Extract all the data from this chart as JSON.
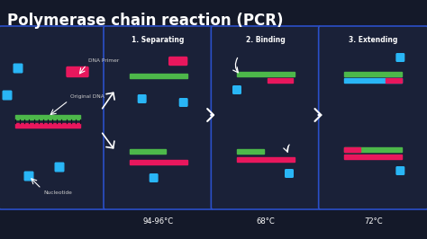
{
  "title": "Polymerase chain reaction (PCR)",
  "bg_color": "#141929",
  "panel_bg": "#1a2138",
  "panel_border": "#2a4fc8",
  "text_color": "#ffffff",
  "title_fontsize": 12,
  "step_labels": [
    "1. Separating",
    "2. Binding",
    "3. Extending"
  ],
  "step_temps": [
    "94-96°C",
    "68°C",
    "72°C"
  ],
  "green_color": "#4db84a",
  "pink_color": "#e8175d",
  "red_color": "#e8175d",
  "blue_color": "#29b6f6",
  "label_color": "#cccccc",
  "dna_dark": "#111122"
}
